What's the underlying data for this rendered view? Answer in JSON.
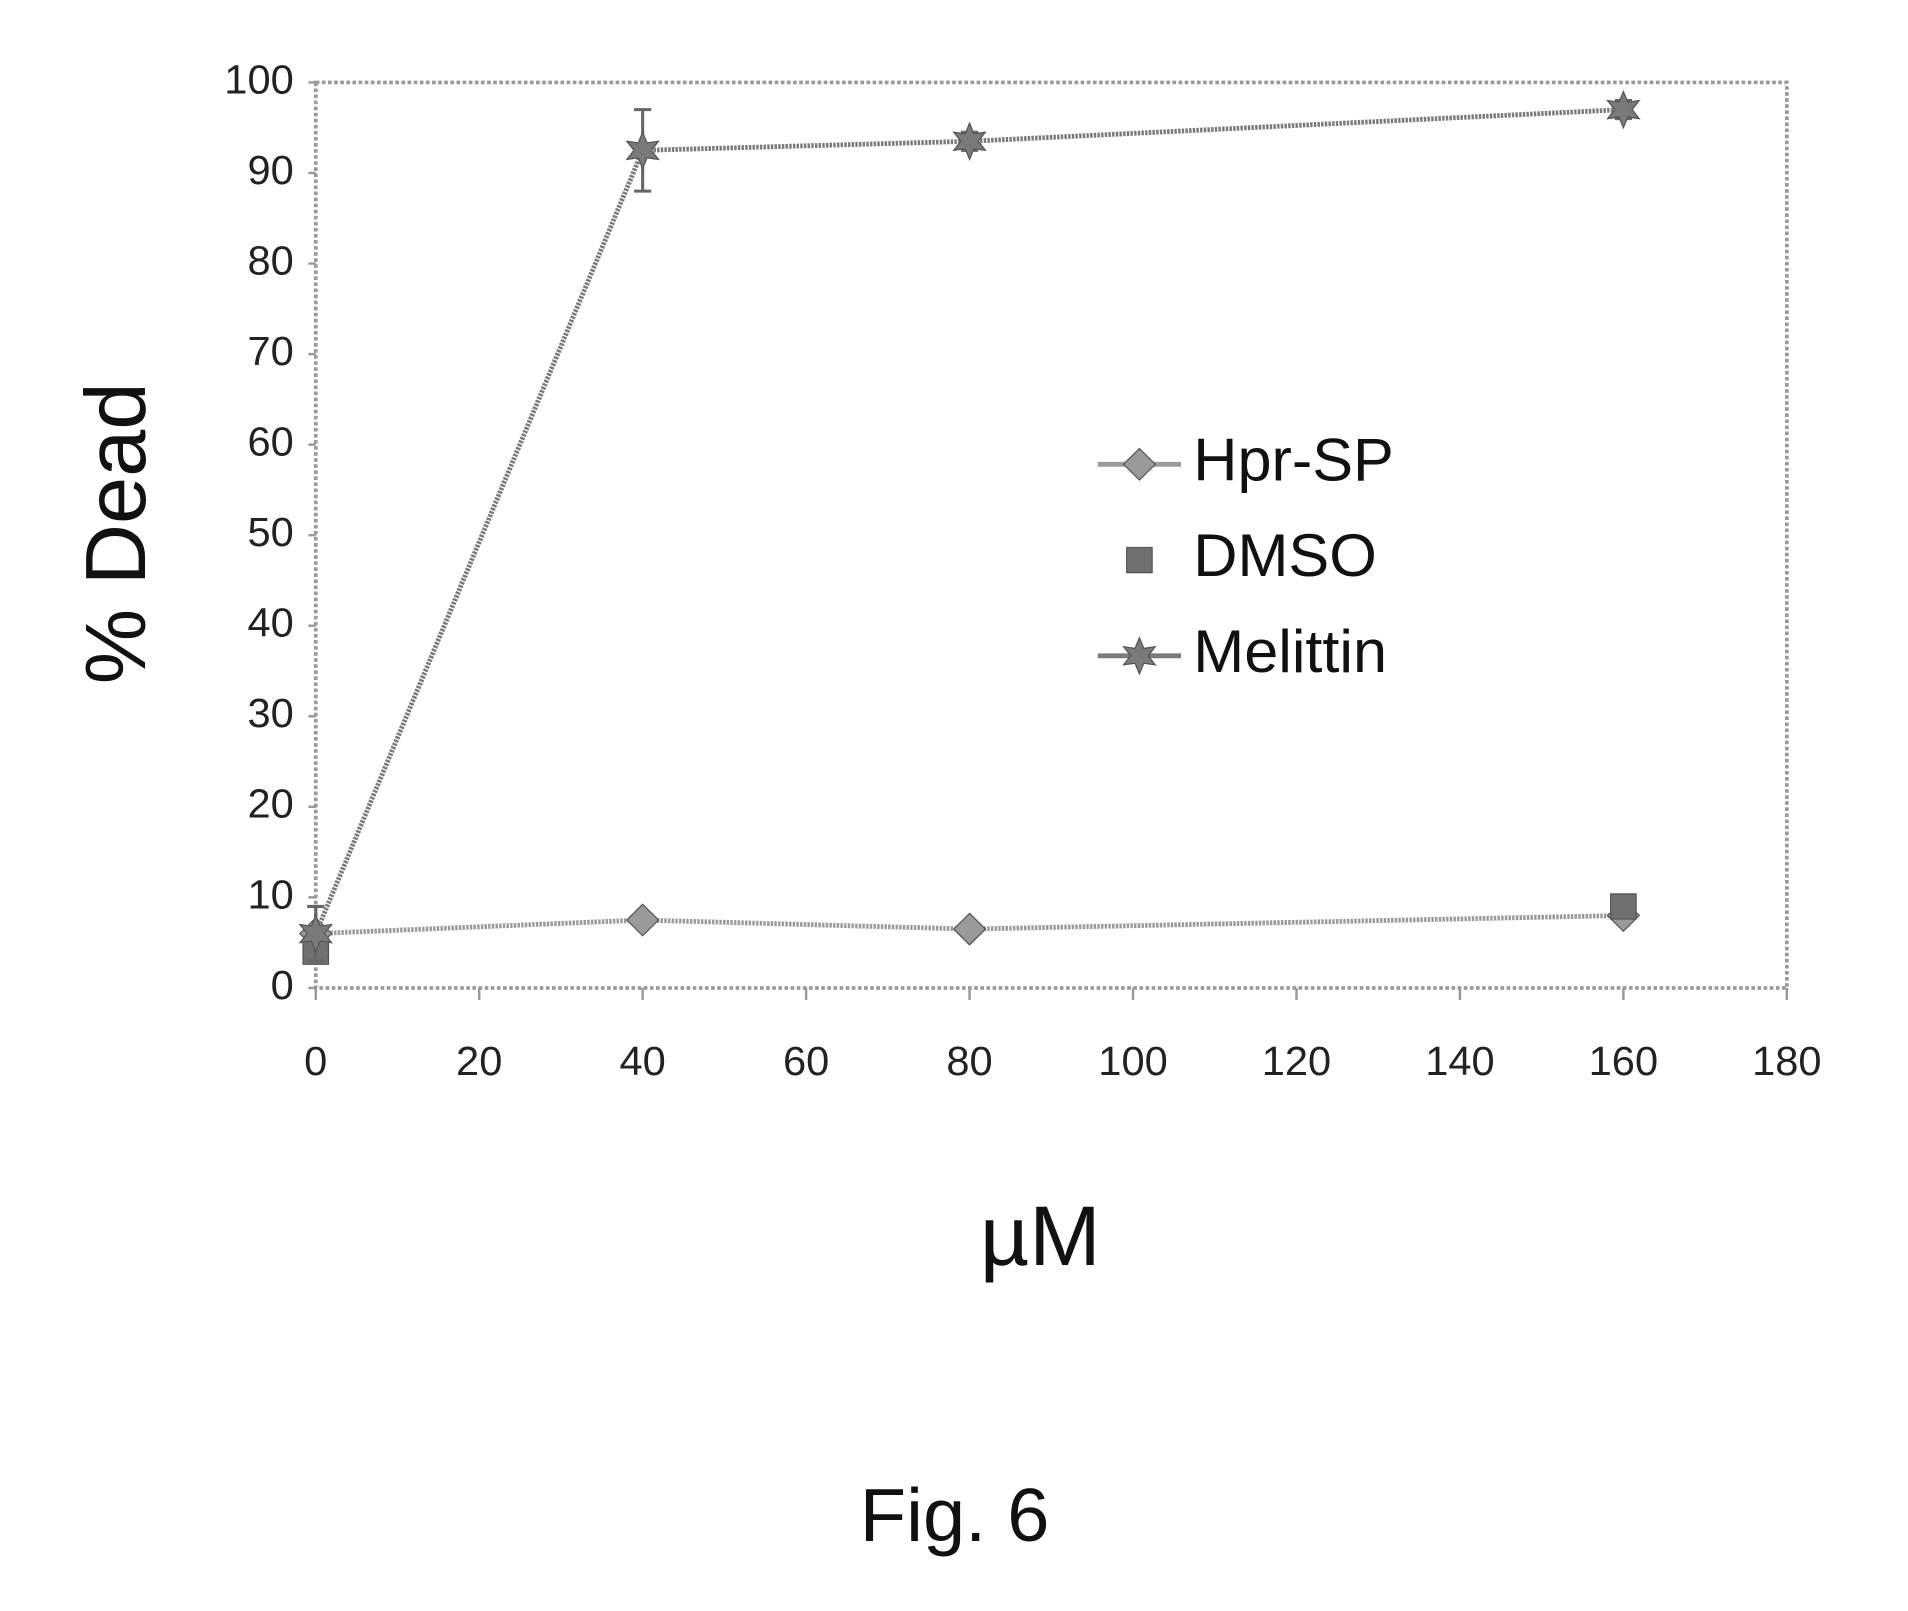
{
  "chart_data": {
    "type": "line",
    "ylabel": "% Dead",
    "xlabel": "µM",
    "caption": "Fig. 6",
    "xlim": [
      0,
      180
    ],
    "xticks": [
      0,
      20,
      40,
      60,
      80,
      100,
      120,
      140,
      160,
      180
    ],
    "ylim": [
      0,
      100
    ],
    "yticks": [
      0,
      10,
      20,
      30,
      40,
      50,
      60,
      70,
      80,
      90,
      100
    ],
    "grid": false,
    "legend": "right",
    "series": [
      {
        "name": "Hpr-SP",
        "color": "#9a9a9a",
        "marker": "diamond",
        "line": true,
        "x": [
          0,
          40,
          80,
          160
        ],
        "values": [
          6,
          7.5,
          6.5,
          8
        ]
      },
      {
        "name": "DMSO",
        "color": "#707070",
        "marker": "square",
        "line": false,
        "x": [
          0,
          160
        ],
        "values": [
          4,
          9
        ]
      },
      {
        "name": "Melittin",
        "color": "#7a7a7a",
        "marker": "star",
        "line": true,
        "x": [
          0,
          40,
          80,
          160
        ],
        "values": [
          6,
          92.5,
          93.5,
          97
        ],
        "errors": [
          3,
          4.5,
          1,
          1
        ]
      }
    ]
  }
}
